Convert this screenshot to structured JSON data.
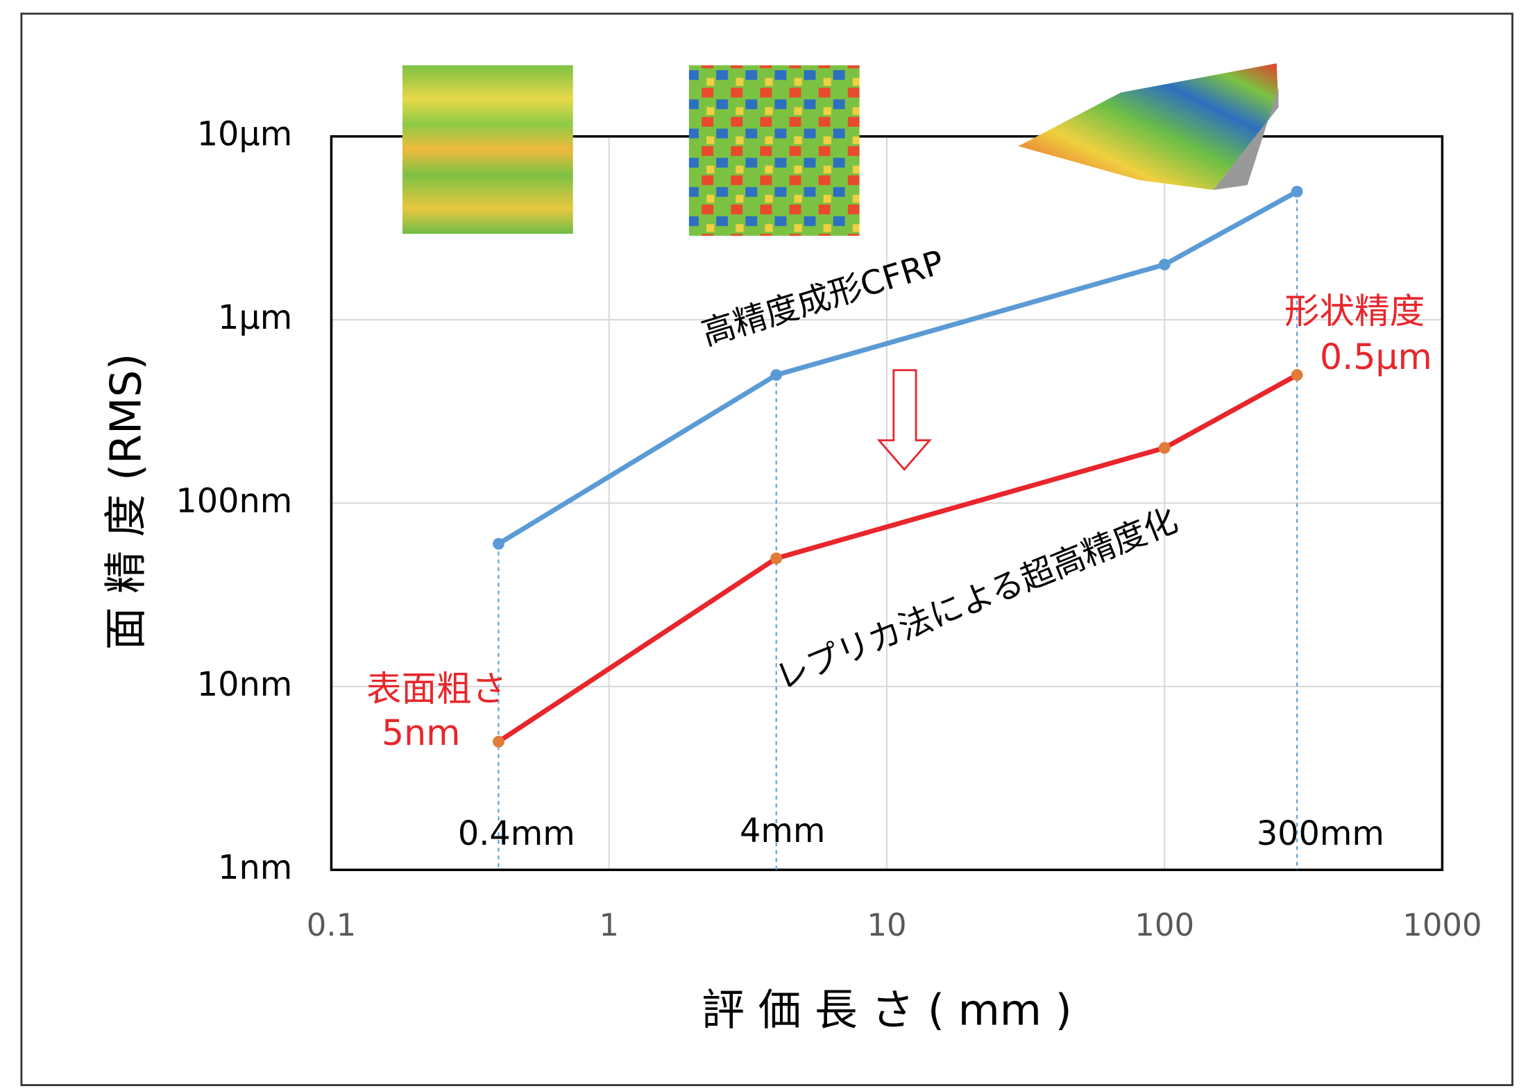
{
  "chart_data": {
    "type": "line",
    "x_label": "評 価 長 さ ( mm )",
    "y_label": "面 精 度 (RMS)",
    "xscale": "log",
    "yscale": "log",
    "grid": true,
    "xlim": [
      0.1,
      1000
    ],
    "xticks": [
      0.1,
      1,
      10,
      100,
      1000
    ],
    "ylim": [
      1,
      10000
    ],
    "yticks": [
      {
        "value": 1,
        "label": "1nm"
      },
      {
        "value": 10,
        "label": "10nm"
      },
      {
        "value": 100,
        "label": "100nm"
      },
      {
        "value": 1000,
        "label": "1μm"
      },
      {
        "value": 10000,
        "label": "10μm"
      }
    ],
    "x": [
      0.4,
      4,
      100,
      300
    ],
    "series": [
      {
        "name": "高精度成形CFRP",
        "color": "#5b9bd5",
        "values": [
          60,
          500,
          2000,
          5000
        ]
      },
      {
        "name": "レプリカ法による超高精度化",
        "color": "#e8262b",
        "values": [
          5,
          50,
          200,
          500
        ]
      }
    ],
    "annotations": [
      "0.4mm",
      "4mm",
      "300mm",
      "表面粗さ",
      "5nm",
      "形状精度",
      "0.5μm"
    ]
  }
}
